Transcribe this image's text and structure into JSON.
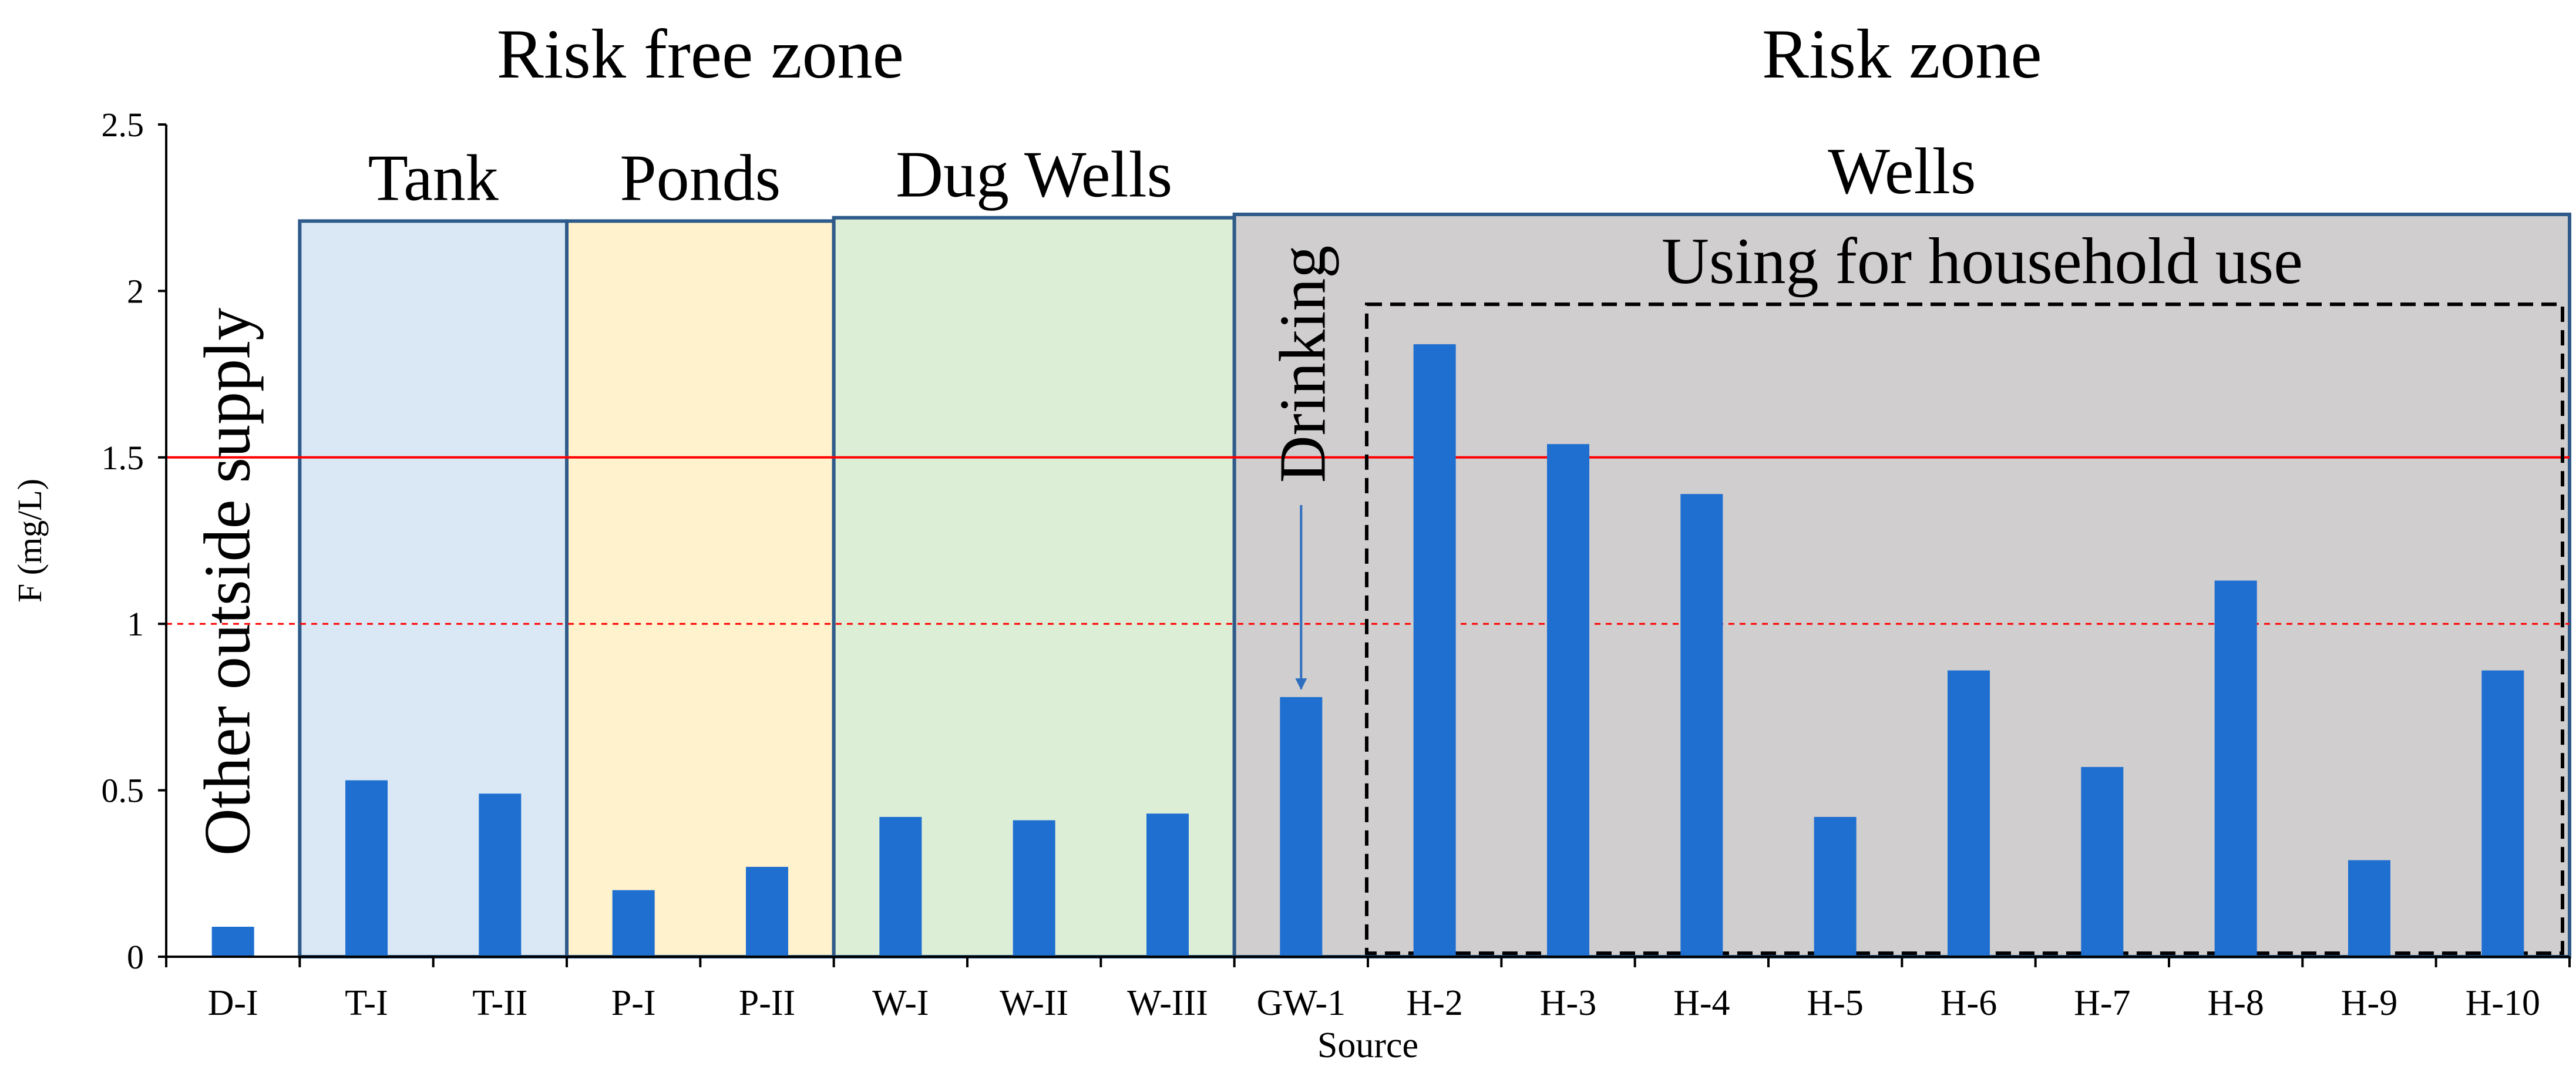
{
  "chart_data": {
    "type": "bar",
    "title": "",
    "xlabel": "Source",
    "ylabel": "F (mg/L)",
    "ylim": [
      0,
      2.5
    ],
    "yticks": [
      0,
      0.5,
      1,
      1.5,
      2,
      2.5
    ],
    "ytick_labels": [
      "0",
      "0.5",
      "1",
      "1.5",
      "2",
      "2.5"
    ],
    "categories": [
      "D-I",
      "T-I",
      "T-II",
      "P-I",
      "P-II",
      "W-I",
      "W-II",
      "W-III",
      "GW-1",
      "H-2",
      "H-3",
      "H-4",
      "H-5",
      "H-6",
      "H-7",
      "H-8",
      "H-9",
      "H-10"
    ],
    "values": [
      0.09,
      0.53,
      0.49,
      0.2,
      0.27,
      0.42,
      0.41,
      0.43,
      0.78,
      1.84,
      1.54,
      1.39,
      0.42,
      0.86,
      0.57,
      1.13,
      0.29,
      0.86
    ],
    "bar_color": "#1f6fd1",
    "reference_lines": [
      {
        "value": 1.5,
        "style": "solid",
        "color": "#ff0000"
      },
      {
        "value": 1.0,
        "style": "dashed",
        "color": "#ff0000"
      }
    ],
    "zone_labels": [
      {
        "id": "risk-free",
        "text": "Risk free zone",
        "from_index": 0,
        "to_index": 7
      },
      {
        "id": "risk",
        "text": "Risk zone",
        "from_index": 8,
        "to_index": 17
      }
    ],
    "groups": [
      {
        "id": "tank",
        "label": "Tank",
        "from_index": 1,
        "to_index": 2,
        "fill": "#dae8f6",
        "top": 2.21
      },
      {
        "id": "ponds",
        "label": "Ponds",
        "from_index": 3,
        "to_index": 4,
        "fill": "#fff2cc",
        "top": 2.21
      },
      {
        "id": "dug-wells",
        "label": "Dug Wells",
        "from_index": 5,
        "to_index": 7,
        "fill": "#dcefd6",
        "top": 2.22
      },
      {
        "id": "wells",
        "label": "Wells",
        "from_index": 8,
        "to_index": 17,
        "fill": "#d0cece",
        "top": 2.23
      }
    ],
    "annotations": {
      "other_outside_supply": "Other outside supply",
      "drinking": "Drinking",
      "household": {
        "text": "Using for household use",
        "from_index": 9,
        "to_index": 17,
        "top": 1.96
      }
    }
  }
}
